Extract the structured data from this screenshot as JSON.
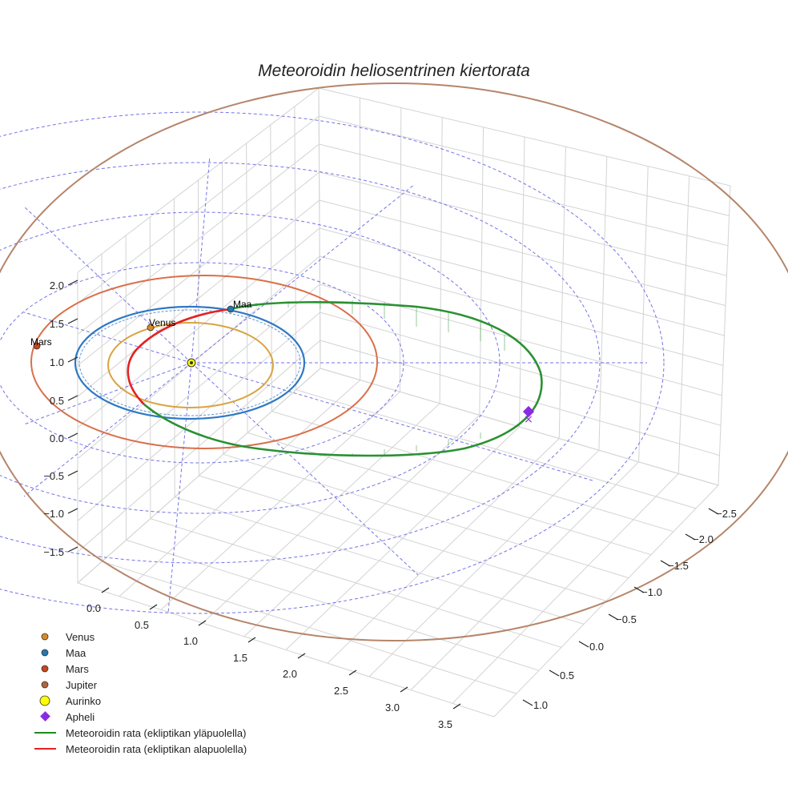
{
  "chart_data": {
    "type": "scatter3d",
    "title": "Meteoroidin heliosentrinen kiertorata",
    "axes": {
      "z_ticks": [
        "−1.5",
        "−1.0",
        "−0.5",
        "0.0",
        "0.5",
        "1.0",
        "1.5",
        "2.0"
      ],
      "x_ticks": [
        "0.0",
        "0.5",
        "1.0",
        "1.5",
        "2.0",
        "2.5",
        "3.0",
        "3.5"
      ],
      "y_ticks": [
        "−2.5",
        "−2.0",
        "−1.5",
        "−1.0",
        "−0.5",
        "0.0",
        "0.5",
        "1.0"
      ],
      "grid": true
    },
    "orbits": [
      {
        "name": "Venus",
        "radius_au": 0.72,
        "color": "#d9a441"
      },
      {
        "name": "Maa",
        "radius_au": 1.0,
        "color": "#2f78c4"
      },
      {
        "name": "Mars",
        "radius_au": 1.52,
        "color": "#d9704a"
      },
      {
        "name": "Jupiter",
        "radius_au": 5.2,
        "color": "#b5856a"
      }
    ],
    "planet_labels": [
      "Venus",
      "Maa",
      "Mars"
    ],
    "sun": {
      "name": "Aurinko",
      "color": "#ffff00"
    },
    "aphelion": {
      "name": "Apheli",
      "color": "#8a2be2"
    },
    "meteoroid": {
      "above_ecliptic": {
        "name": "Meteoroidin rata (ekliptikan yläpuolella)",
        "color": "#2a9132"
      },
      "below_ecliptic": {
        "name": "Meteoroidin rata (ekliptikan alapuolella)",
        "color": "#e32222"
      }
    },
    "reference_grid": {
      "color": "#5b5be6",
      "style": "dashed"
    },
    "legend": {
      "position": "bottom-left",
      "entries": [
        {
          "label": "Venus",
          "marker": "circle",
          "color": "#d98a2b"
        },
        {
          "label": "Maa",
          "marker": "circle",
          "color": "#2577b4"
        },
        {
          "label": "Mars",
          "marker": "circle",
          "color": "#c9471e"
        },
        {
          "label": "Jupiter",
          "marker": "circle",
          "color": "#b3643a"
        },
        {
          "label": "Aurinko",
          "marker": "circle-large",
          "color": "#ffff00"
        },
        {
          "label": "Apheli",
          "marker": "diamond",
          "color": "#8a2be2"
        },
        {
          "label": "Meteoroidin rata (ekliptikan yläpuolella)",
          "marker": "line",
          "color": "#1f8a1f"
        },
        {
          "label": "Meteoroidin rata (ekliptikan alapuolella)",
          "marker": "line",
          "color": "#e32222"
        }
      ]
    }
  }
}
